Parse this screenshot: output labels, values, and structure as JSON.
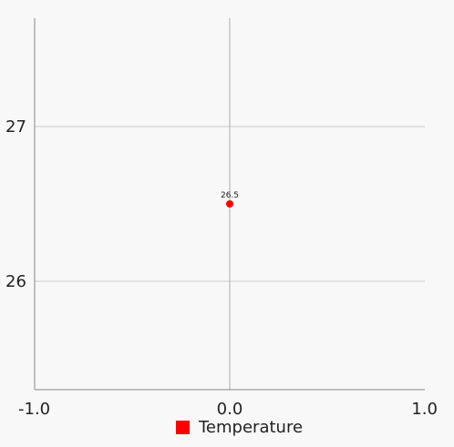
{
  "chart_data": {
    "type": "scatter",
    "title": "",
    "xlabel": "",
    "ylabel": "",
    "xlim": [
      -1.0,
      1.0
    ],
    "ylim": [
      25.3,
      27.7
    ],
    "x_ticks": [
      "-1.0",
      "0.0",
      "1.0"
    ],
    "y_ticks": [
      "26",
      "27"
    ],
    "grid": true,
    "legend_position": "bottom-center",
    "series": [
      {
        "name": "Temperature",
        "color": "#ff0000",
        "points": [
          {
            "x": 0.0,
            "y": 26.5,
            "label": "26.5"
          }
        ]
      }
    ]
  }
}
